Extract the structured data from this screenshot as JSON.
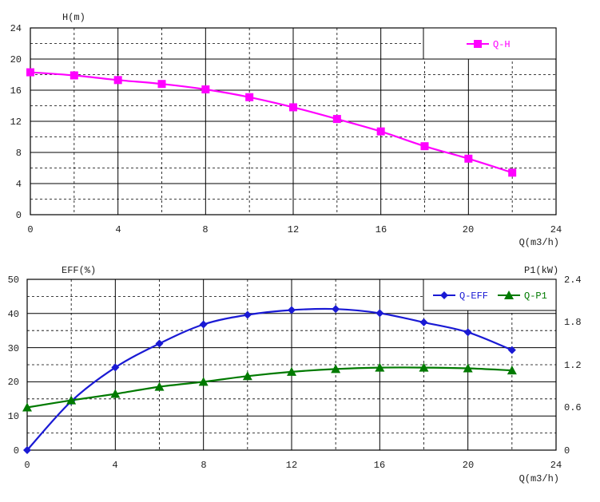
{
  "chart_data": [
    {
      "type": "line",
      "ylabel": "H(m)",
      "xlabel": "Q(m3/h)",
      "xlim": [
        0,
        24
      ],
      "ylim": [
        0,
        24
      ],
      "xticks": [
        "0",
        "4",
        "8",
        "12",
        "16",
        "20",
        "24"
      ],
      "yticks": [
        "0",
        "4",
        "8",
        "12",
        "16",
        "20",
        "24"
      ],
      "grid": true,
      "legend": "top-right",
      "series": [
        {
          "name": "Q-H",
          "color": "#ff00ff",
          "marker": "square",
          "x": [
            0,
            2,
            4,
            6,
            8,
            10,
            12,
            14,
            16,
            18,
            20,
            22
          ],
          "y": [
            18.3,
            17.9,
            17.3,
            16.8,
            16.1,
            15.1,
            13.8,
            12.3,
            10.7,
            8.8,
            7.2,
            5.4
          ]
        }
      ]
    },
    {
      "type": "line",
      "ylabel": "EFF(%)",
      "ylabel_right": "P1(kW)",
      "xlabel": "Q(m3/h)",
      "xlim": [
        0,
        24
      ],
      "ylim": [
        0,
        50
      ],
      "ylim_right": [
        0,
        2.4
      ],
      "xticks": [
        "0",
        "4",
        "8",
        "12",
        "16",
        "20",
        "24"
      ],
      "yticks": [
        "0",
        "10",
        "20",
        "30",
        "40",
        "50"
      ],
      "yticks_right": [
        "0",
        "0.6",
        "1.2",
        "1.8",
        "2.4"
      ],
      "grid": true,
      "legend": "top-right",
      "series": [
        {
          "name": "Q-EFF",
          "axis": "left",
          "color": "#1a1ad4",
          "marker": "diamond",
          "x": [
            0,
            2,
            4,
            6,
            8,
            10,
            12,
            14,
            16,
            18,
            20,
            22
          ],
          "y": [
            0,
            14.3,
            24.2,
            31.2,
            36.8,
            39.6,
            41,
            41.3,
            40.1,
            37.4,
            34.5,
            29.3
          ]
        },
        {
          "name": "Q-P1",
          "axis": "right",
          "color": "#007a00",
          "marker": "triangle",
          "x": [
            0,
            2,
            4,
            6,
            8,
            10,
            12,
            14,
            16,
            18,
            20,
            22
          ],
          "y": [
            0.6,
            0.7,
            0.79,
            0.89,
            0.96,
            1.04,
            1.1,
            1.14,
            1.16,
            1.16,
            1.15,
            1.12
          ]
        }
      ]
    }
  ]
}
